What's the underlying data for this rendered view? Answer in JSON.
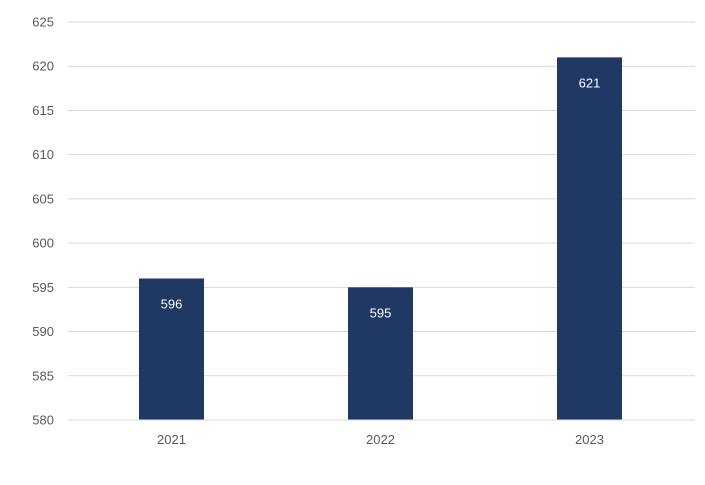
{
  "chart_data": {
    "type": "bar",
    "categories": [
      "2021",
      "2022",
      "2023"
    ],
    "values": [
      596,
      595,
      621
    ],
    "data_labels": [
      "596",
      "595",
      "621"
    ],
    "title": "",
    "xlabel": "",
    "ylabel": "",
    "ylim": [
      580,
      625
    ],
    "y_ticks": [
      580,
      585,
      590,
      595,
      600,
      605,
      610,
      615,
      620,
      625
    ],
    "y_tick_labels": [
      "580",
      "585",
      "590",
      "595",
      "600",
      "605",
      "610",
      "615",
      "620",
      "625"
    ],
    "grid": true,
    "legend": "none",
    "bar_color": "#203864",
    "gridline_color": "#d9d9d9",
    "tick_label_color": "#595959",
    "data_label_color": "#ffffff"
  }
}
